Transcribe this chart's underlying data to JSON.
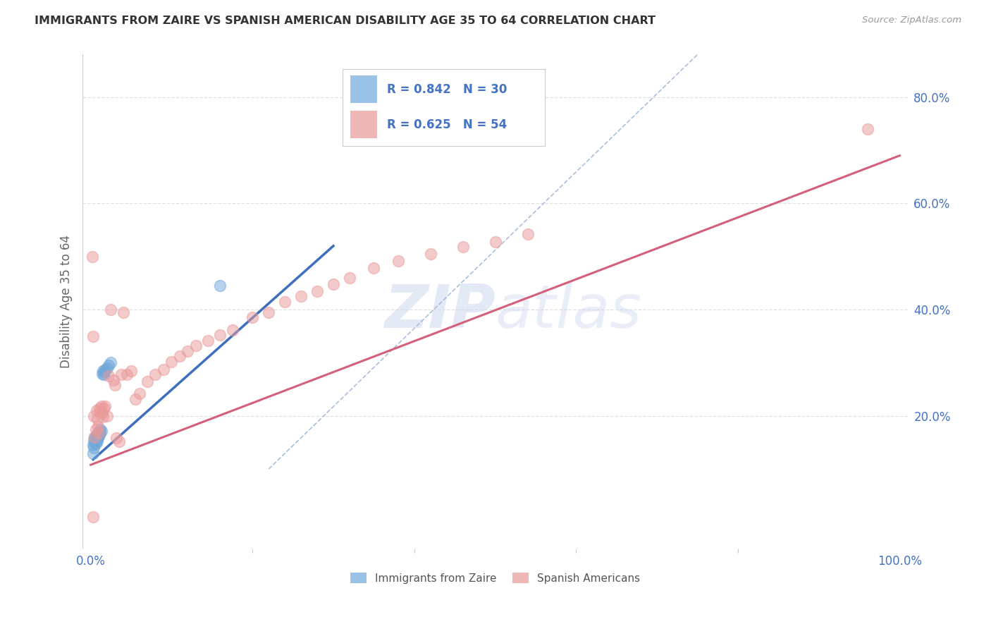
{
  "title": "IMMIGRANTS FROM ZAIRE VS SPANISH AMERICAN DISABILITY AGE 35 TO 64 CORRELATION CHART",
  "source": "Source: ZipAtlas.com",
  "ylabel": "Disability Age 35 to 64",
  "xlim": [
    -0.01,
    1.01
  ],
  "ylim": [
    -0.05,
    0.88
  ],
  "xticks": [
    0.0,
    1.0
  ],
  "xticklabels": [
    "0.0%",
    "100.0%"
  ],
  "ytick_positions": [
    0.2,
    0.4,
    0.6,
    0.8
  ],
  "yticklabels": [
    "20.0%",
    "40.0%",
    "60.0%",
    "80.0%"
  ],
  "watermark": "ZIPatlas",
  "color_blue": "#6fa8dc",
  "color_pink": "#ea9999",
  "trend_blue": "#3d6fbe",
  "trend_pink": "#d45f7a",
  "dashed_color": "#a0b8d8",
  "blue_scatter_x": [
    0.003,
    0.004,
    0.004,
    0.005,
    0.005,
    0.006,
    0.006,
    0.007,
    0.007,
    0.008,
    0.008,
    0.009,
    0.009,
    0.01,
    0.01,
    0.011,
    0.011,
    0.012,
    0.012,
    0.013,
    0.014,
    0.015,
    0.016,
    0.017,
    0.018,
    0.02,
    0.022,
    0.025,
    0.16,
    0.003
  ],
  "blue_scatter_y": [
    0.145,
    0.14,
    0.155,
    0.15,
    0.16,
    0.148,
    0.158,
    0.155,
    0.165,
    0.152,
    0.16,
    0.163,
    0.158,
    0.162,
    0.168,
    0.165,
    0.17,
    0.168,
    0.175,
    0.172,
    0.28,
    0.285,
    0.278,
    0.282,
    0.288,
    0.29,
    0.295,
    0.3,
    0.445,
    0.13
  ],
  "pink_scatter_x": [
    0.002,
    0.003,
    0.004,
    0.005,
    0.006,
    0.007,
    0.008,
    0.009,
    0.01,
    0.011,
    0.012,
    0.013,
    0.014,
    0.015,
    0.016,
    0.018,
    0.02,
    0.022,
    0.025,
    0.028,
    0.03,
    0.032,
    0.035,
    0.038,
    0.04,
    0.045,
    0.05,
    0.055,
    0.06,
    0.07,
    0.08,
    0.09,
    0.1,
    0.11,
    0.12,
    0.13,
    0.145,
    0.16,
    0.175,
    0.2,
    0.22,
    0.24,
    0.26,
    0.28,
    0.3,
    0.32,
    0.35,
    0.38,
    0.42,
    0.46,
    0.5,
    0.54,
    0.96,
    0.003
  ],
  "pink_scatter_y": [
    0.5,
    0.35,
    0.2,
    0.16,
    0.175,
    0.21,
    0.195,
    0.18,
    0.168,
    0.215,
    0.208,
    0.218,
    0.205,
    0.198,
    0.215,
    0.218,
    0.2,
    0.275,
    0.4,
    0.268,
    0.258,
    0.158,
    0.152,
    0.278,
    0.395,
    0.278,
    0.285,
    0.232,
    0.242,
    0.265,
    0.278,
    0.288,
    0.302,
    0.312,
    0.322,
    0.332,
    0.342,
    0.352,
    0.362,
    0.385,
    0.395,
    0.415,
    0.425,
    0.435,
    0.448,
    0.46,
    0.478,
    0.492,
    0.505,
    0.518,
    0.528,
    0.542,
    0.74,
    0.01
  ],
  "blue_trend_x": [
    0.003,
    0.3
  ],
  "blue_trend_y": [
    0.118,
    0.52
  ],
  "pink_trend_x": [
    0.0,
    1.0
  ],
  "pink_trend_y": [
    0.108,
    0.69
  ],
  "dashed_line_x": [
    0.22,
    0.75
  ],
  "dashed_line_y": [
    0.1,
    0.88
  ],
  "grid_color": "#e0e0e0",
  "background_color": "#ffffff",
  "title_color": "#333333",
  "axis_color": "#4472c4",
  "ylabel_color": "#666666"
}
